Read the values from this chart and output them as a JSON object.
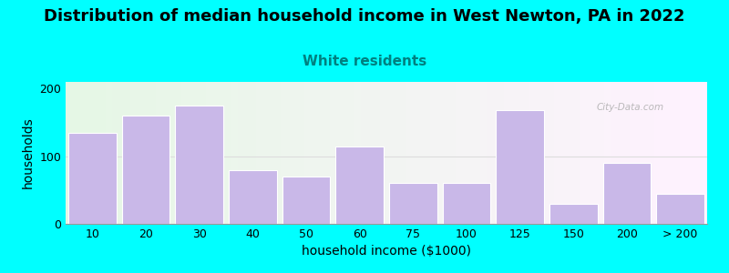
{
  "title": "Distribution of median household income in West Newton, PA in 2022",
  "subtitle": "White residents",
  "xlabel": "household income ($1000)",
  "ylabel": "households",
  "background_outer": "#00FFFF",
  "bar_color": "#C9B8E8",
  "bar_edge_color": "#FFFFFF",
  "categories": [
    "10",
    "20",
    "30",
    "40",
    "50",
    "60",
    "75",
    "100",
    "125",
    "150",
    "200",
    "> 200"
  ],
  "values": [
    135,
    160,
    175,
    80,
    70,
    115,
    60,
    60,
    168,
    30,
    90,
    45
  ],
  "ylim": [
    0,
    210
  ],
  "yticks": [
    0,
    100,
    200
  ],
  "title_fontsize": 13,
  "subtitle_fontsize": 11,
  "subtitle_color": "#008080",
  "axis_label_fontsize": 10,
  "tick_fontsize": 9,
  "watermark_text": "City-Data.com",
  "watermark_color": "#AAAAAA",
  "hline_color": "#DDDDDD",
  "bg_left_color": "#E8F5E8",
  "bg_right_color": "#F0F8FF"
}
